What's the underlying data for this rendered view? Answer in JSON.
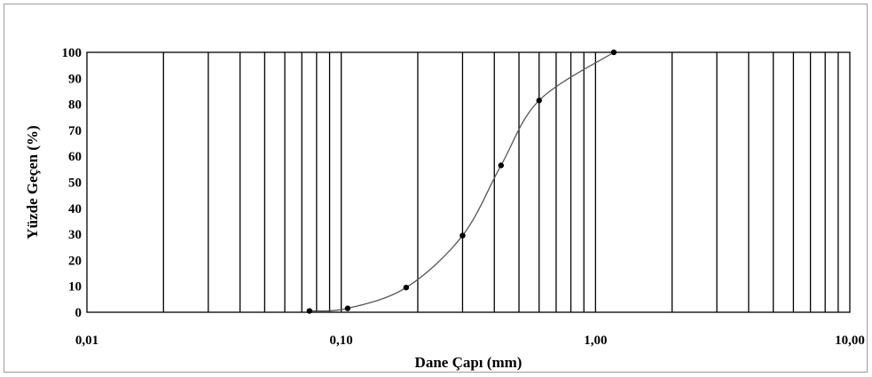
{
  "chart_data": {
    "type": "scatter",
    "title": "",
    "xlabel": "Dane Çapı (mm)",
    "ylabel": "Yüzde Geçen (%)",
    "x_scale": "log",
    "xlim": [
      0.01,
      10
    ],
    "ylim": [
      0,
      100
    ],
    "x_ticks": [
      "0,01",
      "0,10",
      "1,00",
      "10,00"
    ],
    "y_ticks": [
      "0",
      "10",
      "20",
      "30",
      "40",
      "50",
      "60",
      "70",
      "80",
      "90",
      "100"
    ],
    "grid": "log-minor vertical, none horizontal",
    "legend": "none",
    "smoothed_line": true,
    "series": [
      {
        "x": [
          0.075,
          0.106,
          0.18,
          0.3,
          0.425,
          0.6,
          1.18
        ],
        "y": [
          0.5,
          1.5,
          9.5,
          29.5,
          56.5,
          81.5,
          100
        ]
      }
    ],
    "colors": {
      "line": "#555555",
      "marker": "#000000",
      "grid": "#000000"
    }
  }
}
